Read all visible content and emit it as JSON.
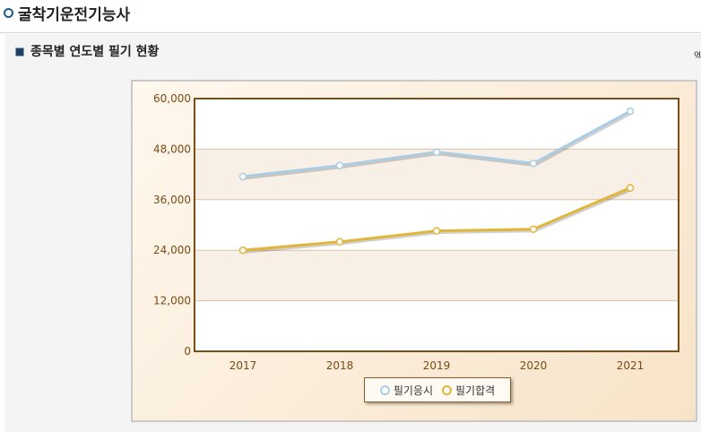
{
  "page": {
    "title": "굴착기운전기능사",
    "subtitle": "종목별 연도별 필기 현황",
    "right_text": "엑"
  },
  "chart_data": {
    "type": "line",
    "categories": [
      "2017",
      "2018",
      "2019",
      "2020",
      "2021"
    ],
    "ylim": [
      0,
      60000
    ],
    "yticks": [
      0,
      12000,
      24000,
      36000,
      48000,
      60000
    ],
    "ytick_labels": [
      "0",
      "12,000",
      "24,000",
      "36,000",
      "48,000",
      "60,000"
    ],
    "grid": true,
    "legend_position": "bottom-center",
    "series": [
      {
        "name": "필기응시",
        "values": [
          41500,
          44100,
          47300,
          44600,
          57000
        ],
        "color": "#aacde4"
      },
      {
        "name": "필기합격",
        "values": [
          24000,
          26000,
          28600,
          29000,
          38800
        ],
        "color": "#e0b63a"
      }
    ]
  }
}
